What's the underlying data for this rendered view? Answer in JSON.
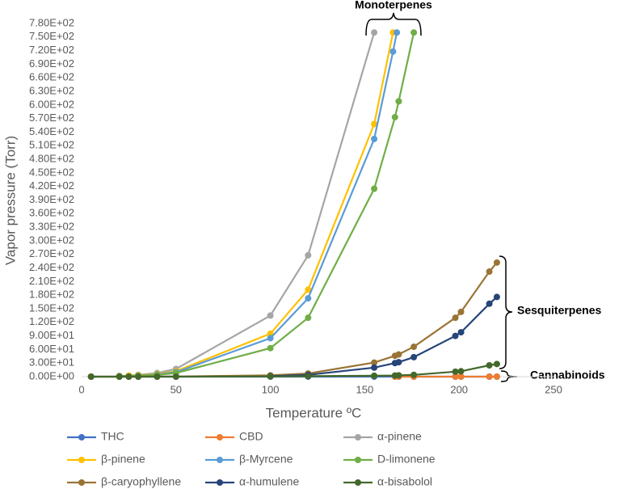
{
  "chart_data": {
    "type": "line",
    "y_label": "Vapor pressure (Torr)",
    "x_label": "Temperature ºC",
    "xlim": [
      0,
      250
    ],
    "xticks": [
      0,
      50,
      100,
      150,
      200,
      250
    ],
    "ylim": [
      0,
      780
    ],
    "yticks": [
      {
        "value": 0,
        "label": "0.00E+00"
      },
      {
        "value": 30,
        "label": "3.00E+01"
      },
      {
        "value": 60,
        "label": "6.00E+01"
      },
      {
        "value": 90,
        "label": "9.00E+01"
      },
      {
        "value": 120,
        "label": "1.20E+02"
      },
      {
        "value": 150,
        "label": "1.50E+02"
      },
      {
        "value": 180,
        "label": "1.80E+02"
      },
      {
        "value": 210,
        "label": "2.10E+02"
      },
      {
        "value": 240,
        "label": "2.40E+02"
      },
      {
        "value": 270,
        "label": "2.70E+02"
      },
      {
        "value": 300,
        "label": "3.00E+02"
      },
      {
        "value": 330,
        "label": "3.30E+02"
      },
      {
        "value": 360,
        "label": "3.60E+02"
      },
      {
        "value": 390,
        "label": "3.90E+02"
      },
      {
        "value": 420,
        "label": "4.20E+02"
      },
      {
        "value": 450,
        "label": "4.50E+02"
      },
      {
        "value": 480,
        "label": "4.80E+02"
      },
      {
        "value": 510,
        "label": "5.10E+02"
      },
      {
        "value": 540,
        "label": "5.40E+02"
      },
      {
        "value": 570,
        "label": "5.70E+02"
      },
      {
        "value": 600,
        "label": "6.00E+02"
      },
      {
        "value": 630,
        "label": "6.30E+02"
      },
      {
        "value": 660,
        "label": "6.60E+02"
      },
      {
        "value": 690,
        "label": "6.90E+02"
      },
      {
        "value": 720,
        "label": "7.20E+02"
      },
      {
        "value": 750,
        "label": "7.50E+02"
      },
      {
        "value": 780,
        "label": "7.80E+02"
      }
    ],
    "grid": false,
    "legend": "bottom",
    "annotations": [
      "Monoterpenes",
      "Sesquiterpenes",
      "Cannabinoids"
    ],
    "series": [
      {
        "name": "THC",
        "color": "#4472c4",
        "x": [
          5,
          20,
          25,
          30,
          40,
          50,
          100,
          120,
          155,
          166,
          168,
          176,
          198,
          201,
          216,
          220
        ],
        "values": [
          0,
          0,
          0,
          0,
          0,
          0,
          0,
          0,
          0,
          0,
          0,
          0,
          0,
          0,
          0,
          0
        ]
      },
      {
        "name": "CBD",
        "color": "#ed7d31",
        "x": [
          166,
          168,
          176,
          198,
          201,
          216,
          220
        ],
        "values": [
          0,
          0,
          0,
          0,
          0,
          0,
          0
        ]
      },
      {
        "name": "α-pinene",
        "color": "#a5a5a5",
        "x": [
          20,
          25,
          30,
          40,
          50,
          100,
          120,
          155
        ],
        "values": [
          1.5,
          2.5,
          4,
          8,
          17,
          135,
          268,
          760
        ]
      },
      {
        "name": "β-pinene",
        "color": "#ffc000",
        "x": [
          20,
          25,
          30,
          40,
          50,
          100,
          120,
          155,
          165
        ],
        "values": [
          1,
          2,
          3,
          6,
          12,
          95,
          192,
          558,
          760
        ]
      },
      {
        "name": "β-Myrcene",
        "color": "#5b9bd5",
        "x": [
          20,
          30,
          40,
          50,
          100,
          120,
          155,
          165,
          167
        ],
        "values": [
          1,
          2,
          5,
          10,
          85,
          173,
          525,
          718,
          760
        ]
      },
      {
        "name": "D-limonene",
        "color": "#70ad47",
        "x": [
          20,
          30,
          40,
          50,
          100,
          120,
          155,
          166,
          168,
          176
        ],
        "values": [
          1,
          2,
          4,
          8,
          63,
          130,
          415,
          573,
          608,
          760
        ]
      },
      {
        "name": "β-caryophyllene",
        "color": "#9a7435",
        "x": [
          5,
          20,
          25,
          30,
          40,
          50,
          100,
          120,
          155,
          166,
          168,
          176,
          198,
          201,
          216,
          220
        ],
        "values": [
          0,
          0,
          0,
          0,
          0.1,
          0.3,
          3,
          7,
          31,
          46,
          49,
          66,
          130,
          143,
          232,
          252
        ]
      },
      {
        "name": "α-humulene",
        "color": "#264478",
        "x": [
          100,
          120,
          155,
          166,
          168,
          176,
          198,
          201,
          216,
          220
        ],
        "values": [
          1,
          4,
          20,
          30,
          32,
          43,
          90,
          98,
          161,
          176
        ]
      },
      {
        "name": "α-bisabolol",
        "color": "#43682b",
        "x": [
          5,
          20,
          25,
          30,
          40,
          50,
          100,
          120,
          155,
          166,
          168,
          176,
          198,
          201,
          216,
          220
        ],
        "values": [
          0,
          0,
          0,
          0,
          0,
          0,
          0.5,
          1,
          2,
          2.5,
          3,
          4,
          11,
          12,
          25,
          28
        ]
      }
    ]
  }
}
